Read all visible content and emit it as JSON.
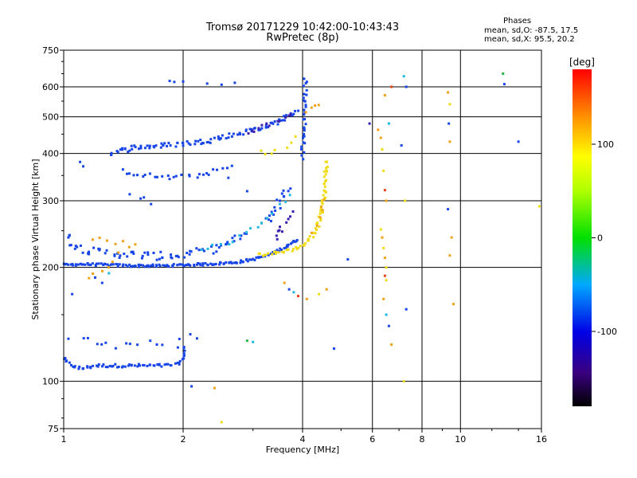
{
  "header": {
    "title_line1": "Tromsø 20171229 10:42:00-10:43:43",
    "title_line2": "RwPretec (8p)"
  },
  "phases": {
    "heading": "Phases",
    "line_o": "mean, sd,O: -87.5, 17.5",
    "line_x": "mean, sd,X:  95.5, 20.2"
  },
  "chart_data": {
    "type": "scatter",
    "title": "Tromsø 20171229 10:42:00-10:43:43",
    "subtitle": "RwPretec (8p)",
    "xlabel": "Frequency [MHz]",
    "ylabel": "Stationary phase Virtual Height [km]",
    "x_scale": "log",
    "y_scale": "log",
    "xlim": [
      1,
      16
    ],
    "ylim": [
      75,
      750
    ],
    "x_ticks": [
      "1",
      "2",
      "4",
      "6",
      "8",
      "10",
      "16"
    ],
    "x_tick_values": [
      1,
      2,
      4,
      6,
      8,
      10,
      16
    ],
    "y_ticks": [
      "75",
      "100",
      "200",
      "300",
      "400",
      "500",
      "600",
      "750"
    ],
    "y_tick_values": [
      75,
      100,
      200,
      300,
      400,
      500,
      600,
      750
    ],
    "grid": true,
    "colorbar": {
      "label": "[deg]",
      "range": [
        -180,
        180
      ],
      "ticks": [
        "100",
        "0",
        "-100"
      ],
      "tick_values": [
        100,
        0,
        -100
      ]
    },
    "point_colors": {
      "blue": "#1846e6",
      "navy": "#3a1fb0",
      "cyan": "#22b9df",
      "yellow": "#f0dc16",
      "orange": "#f0a21a",
      "red": "#e34414",
      "green": "#2ab54a"
    },
    "traces": [
      {
        "name": "",
        "color": "blue",
        "jitter": 0.02,
        "density": 4,
        "points": [
          [
            1.0,
            115
          ],
          [
            1.02,
            112
          ],
          [
            1.05,
            110
          ],
          [
            1.1,
            108
          ],
          [
            1.15,
            109
          ],
          [
            1.2,
            110
          ],
          [
            1.4,
            110
          ],
          [
            1.6,
            110
          ],
          [
            1.8,
            110
          ],
          [
            1.95,
            111
          ],
          [
            2.0,
            115
          ],
          [
            2.02,
            125
          ]
        ]
      },
      {
        "name": "",
        "color": "blue",
        "jitter": 0.05,
        "density": 1,
        "points": [
          [
            1.0,
            130
          ],
          [
            1.15,
            128
          ],
          [
            1.3,
            124
          ],
          [
            1.5,
            128
          ],
          [
            1.7,
            126
          ],
          [
            1.9,
            124
          ],
          [
            2.1,
            130
          ],
          [
            2.3,
            133
          ]
        ]
      },
      {
        "name": "",
        "color": "blue",
        "jitter": 0.015,
        "density": 5,
        "points": [
          [
            1.0,
            203
          ],
          [
            1.1,
            204
          ],
          [
            1.3,
            203
          ],
          [
            1.5,
            202
          ],
          [
            1.8,
            202
          ],
          [
            2.0,
            203
          ],
          [
            2.3,
            204
          ],
          [
            2.7,
            206
          ],
          [
            3.0,
            210
          ],
          [
            3.2,
            214
          ],
          [
            3.5,
            222
          ],
          [
            3.7,
            230
          ],
          [
            3.9,
            238
          ]
        ]
      },
      {
        "name": "",
        "color": "blue",
        "jitter": 0.05,
        "density": 3,
        "points": [
          [
            1.0,
            245
          ],
          [
            1.05,
            232
          ],
          [
            1.1,
            225
          ],
          [
            1.2,
            220
          ],
          [
            1.4,
            217
          ],
          [
            1.6,
            215
          ],
          [
            1.8,
            214
          ],
          [
            2.0,
            216
          ],
          [
            2.3,
            222
          ],
          [
            2.6,
            232
          ],
          [
            2.9,
            248
          ]
        ]
      },
      {
        "name": "",
        "color": "blue",
        "jitter": 0.04,
        "density": 3,
        "points": [
          [
            3.2,
            260
          ],
          [
            3.4,
            280
          ],
          [
            3.5,
            300
          ],
          [
            3.6,
            320
          ],
          [
            3.7,
            330
          ]
        ]
      },
      {
        "name": "",
        "color": "navy",
        "jitter": 0.04,
        "density": 2,
        "points": [
          [
            3.4,
            235
          ],
          [
            3.5,
            250
          ],
          [
            3.6,
            265
          ],
          [
            3.7,
            275
          ],
          [
            3.8,
            285
          ]
        ]
      },
      {
        "name": "",
        "color": "blue",
        "jitter": 0.03,
        "density": 4,
        "points": [
          [
            1.3,
            400
          ],
          [
            1.5,
            415
          ],
          [
            1.8,
            420
          ],
          [
            2.0,
            425
          ],
          [
            2.3,
            432
          ],
          [
            2.6,
            445
          ],
          [
            3.0,
            462
          ],
          [
            3.3,
            475
          ],
          [
            3.6,
            495
          ],
          [
            3.8,
            510
          ],
          [
            3.95,
            525
          ]
        ]
      },
      {
        "name": "",
        "color": "navy",
        "jitter": 0.03,
        "density": 2,
        "points": [
          [
            2.9,
            455
          ],
          [
            3.2,
            470
          ],
          [
            3.5,
            490
          ],
          [
            3.8,
            505
          ]
        ]
      },
      {
        "name": "",
        "color": "blue",
        "jitter": 0.03,
        "density": 2,
        "points": [
          [
            1.4,
            360
          ],
          [
            1.6,
            350
          ],
          [
            1.9,
            345
          ],
          [
            2.1,
            348
          ],
          [
            2.4,
            358
          ],
          [
            2.7,
            372
          ]
        ]
      },
      {
        "name": "",
        "color": "blue",
        "jitter": 0.05,
        "density": 1,
        "points": [
          [
            1.5,
            310
          ],
          [
            1.6,
            300
          ],
          [
            1.7,
            290
          ]
        ]
      },
      {
        "name": "",
        "color": "blue",
        "jitter": 0.02,
        "density": 3,
        "points": [
          [
            4.0,
            390
          ],
          [
            4.02,
            430
          ],
          [
            4.04,
            480
          ],
          [
            4.05,
            530
          ],
          [
            4.06,
            580
          ],
          [
            4.07,
            640
          ]
        ]
      },
      {
        "name": "",
        "color": "cyan",
        "jitter": 0.03,
        "density": 1,
        "points": [
          [
            2.2,
            222
          ],
          [
            2.6,
            232
          ],
          [
            2.9,
            245
          ],
          [
            3.2,
            262
          ],
          [
            3.6,
            300
          ],
          [
            3.8,
            330
          ]
        ]
      },
      {
        "name": "",
        "color": "yellow",
        "jitter": 0.02,
        "density": 4,
        "points": [
          [
            3.1,
            216
          ],
          [
            3.4,
            218
          ],
          [
            3.7,
            222
          ],
          [
            4.0,
            228
          ],
          [
            4.2,
            240
          ],
          [
            4.35,
            255
          ],
          [
            4.45,
            275
          ],
          [
            4.52,
            300
          ],
          [
            4.56,
            330
          ],
          [
            4.58,
            360
          ],
          [
            4.6,
            385
          ]
        ]
      },
      {
        "name": "",
        "color": "orange",
        "jitter": 0.03,
        "density": 1,
        "points": [
          [
            4.2,
            250
          ],
          [
            4.4,
            270
          ],
          [
            4.5,
            290
          ],
          [
            4.55,
            310
          ]
        ]
      },
      {
        "name": "",
        "color": "orange",
        "jitter": 0.03,
        "density": 1,
        "points": [
          [
            4.1,
            510
          ],
          [
            4.3,
            540
          ],
          [
            4.5,
            550
          ]
        ]
      },
      {
        "name": "",
        "color": "yellow",
        "jitter": 0.04,
        "density": 1,
        "points": [
          [
            3.1,
            400
          ],
          [
            3.3,
            405
          ],
          [
            3.6,
            410
          ],
          [
            3.9,
            470
          ]
        ]
      },
      {
        "name": "",
        "color": "orange",
        "jitter": 0.03,
        "density": 1,
        "points": [
          [
            1.2,
            240
          ],
          [
            1.3,
            235
          ],
          [
            1.5,
            232
          ],
          [
            1.2,
            190
          ],
          [
            1.15,
            185
          ]
        ]
      }
    ],
    "scattered_points": [
      [
        1.85,
        622,
        "blue"
      ],
      [
        1.9,
        618,
        "blue"
      ],
      [
        2.0,
        620,
        "blue"
      ],
      [
        2.3,
        612,
        "blue"
      ],
      [
        2.5,
        608,
        "blue"
      ],
      [
        2.7,
        615,
        "blue"
      ],
      [
        1.1,
        380,
        "blue"
      ],
      [
        1.12,
        370,
        "blue"
      ],
      [
        2.6,
        345,
        "blue"
      ],
      [
        2.9,
        318,
        "blue"
      ],
      [
        1.05,
        170,
        "blue"
      ],
      [
        1.2,
        188,
        "blue"
      ],
      [
        1.25,
        182,
        "blue"
      ],
      [
        1.3,
        193,
        "cyan"
      ],
      [
        2.1,
        97,
        "blue"
      ],
      [
        2.4,
        96,
        "orange"
      ],
      [
        2.5,
        78,
        "yellow"
      ],
      [
        2.9,
        128,
        "green"
      ],
      [
        3.0,
        127,
        "cyan"
      ],
      [
        3.6,
        182,
        "orange"
      ],
      [
        3.7,
        175,
        "blue"
      ],
      [
        3.8,
        172,
        "cyan"
      ],
      [
        3.9,
        168,
        "red"
      ],
      [
        4.1,
        165,
        "orange"
      ],
      [
        4.4,
        170,
        "yellow"
      ],
      [
        4.6,
        175,
        "orange"
      ],
      [
        4.8,
        122,
        "blue"
      ],
      [
        5.2,
        210,
        "blue"
      ],
      [
        5.9,
        480,
        "navy"
      ],
      [
        6.2,
        462,
        "orange"
      ],
      [
        6.3,
        440,
        "orange"
      ],
      [
        6.35,
        410,
        "yellow"
      ],
      [
        6.4,
        360,
        "yellow"
      ],
      [
        6.45,
        320,
        "red"
      ],
      [
        6.5,
        300,
        "orange"
      ],
      [
        6.3,
        252,
        "yellow"
      ],
      [
        6.35,
        240,
        "orange"
      ],
      [
        6.4,
        225,
        "yellow"
      ],
      [
        6.45,
        212,
        "orange"
      ],
      [
        6.5,
        200,
        "yellow"
      ],
      [
        6.45,
        190,
        "red"
      ],
      [
        6.5,
        185,
        "yellow"
      ],
      [
        6.6,
        480,
        "cyan"
      ],
      [
        6.7,
        600,
        "red"
      ],
      [
        6.45,
        570,
        "orange"
      ],
      [
        6.4,
        165,
        "orange"
      ],
      [
        6.5,
        150,
        "cyan"
      ],
      [
        6.6,
        140,
        "blue"
      ],
      [
        6.7,
        125,
        "orange"
      ],
      [
        7.2,
        640,
        "cyan"
      ],
      [
        7.3,
        600,
        "blue"
      ],
      [
        7.1,
        420,
        "blue"
      ],
      [
        7.25,
        300,
        "yellow"
      ],
      [
        7.3,
        155,
        "blue"
      ],
      [
        7.2,
        100,
        "yellow"
      ],
      [
        9.3,
        580,
        "orange"
      ],
      [
        9.4,
        540,
        "yellow"
      ],
      [
        9.35,
        480,
        "blue"
      ],
      [
        9.4,
        430,
        "orange"
      ],
      [
        9.3,
        285,
        "blue"
      ],
      [
        9.5,
        240,
        "orange"
      ],
      [
        9.4,
        215,
        "orange"
      ],
      [
        9.6,
        160,
        "orange"
      ],
      [
        12.8,
        650,
        "green"
      ],
      [
        12.9,
        610,
        "blue"
      ],
      [
        14.0,
        430,
        "blue"
      ],
      [
        15.8,
        290,
        "yellow"
      ]
    ]
  }
}
